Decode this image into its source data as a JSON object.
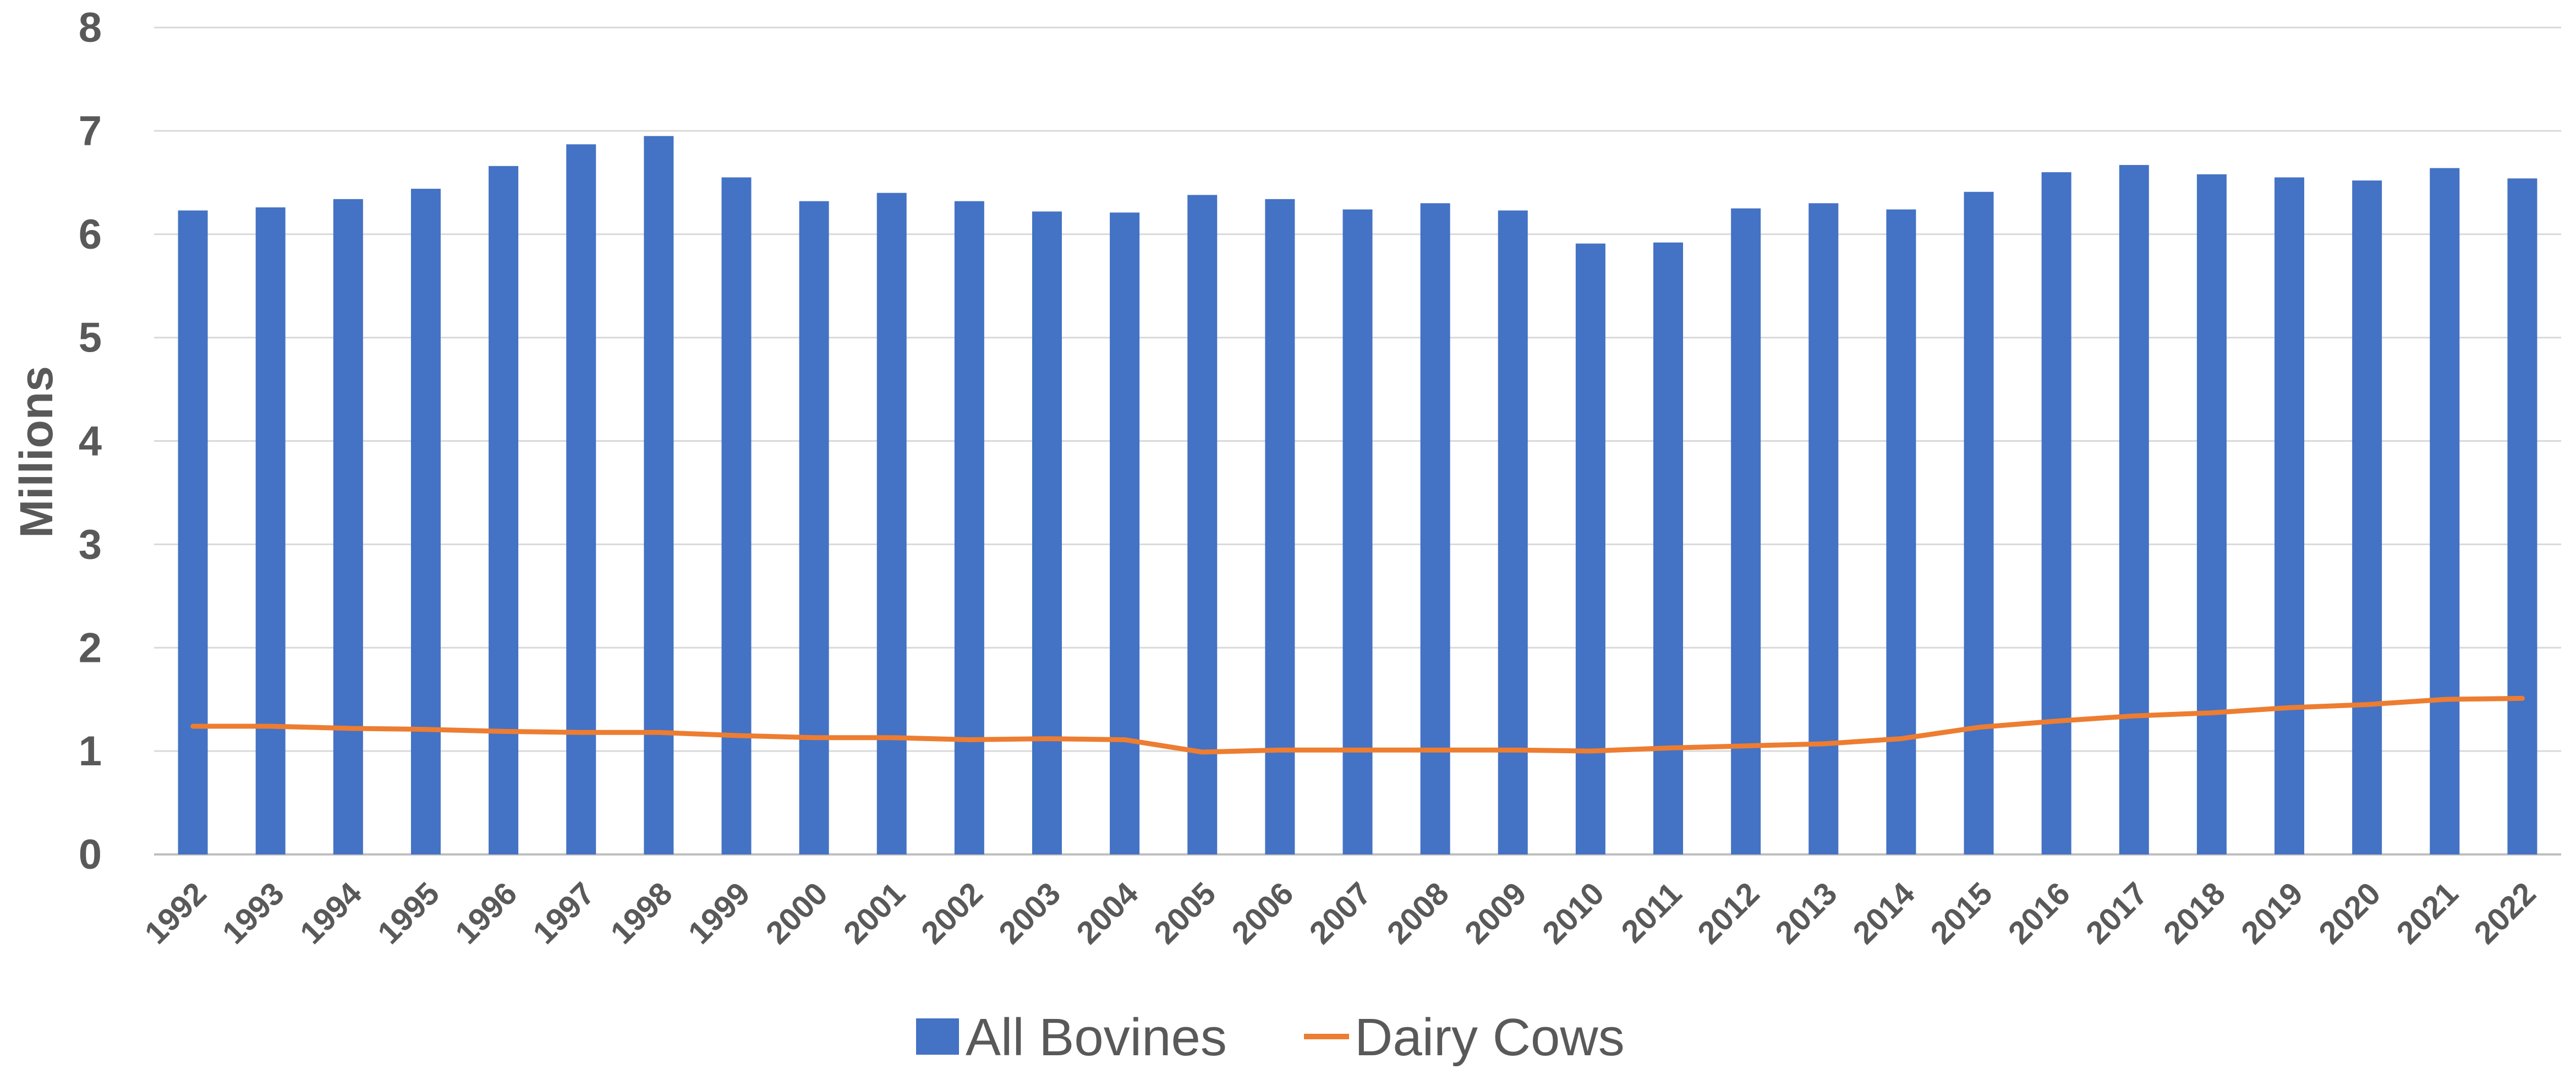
{
  "chart_data": {
    "type": "bar",
    "title": "",
    "xlabel": "",
    "ylabel": "Millions",
    "ylim": [
      0,
      8
    ],
    "yticks": [
      "0",
      "1",
      "2",
      "3",
      "4",
      "5",
      "6",
      "7",
      "8"
    ],
    "grid": true,
    "legend_position": "bottom",
    "categories": [
      "1992",
      "1993",
      "1994",
      "1995",
      "1996",
      "1997",
      "1998",
      "1999",
      "2000",
      "2001",
      "2002",
      "2003",
      "2004",
      "2005",
      "2006",
      "2007",
      "2008",
      "2009",
      "2010",
      "2011",
      "2012",
      "2013",
      "2014",
      "2015",
      "2016",
      "2017",
      "2018",
      "2019",
      "2020",
      "2021",
      "2022"
    ],
    "series": [
      {
        "name": "All Bovines",
        "type": "bar",
        "color": "#4472C4",
        "values": [
          6.23,
          6.26,
          6.34,
          6.44,
          6.66,
          6.87,
          6.95,
          6.55,
          6.32,
          6.4,
          6.32,
          6.22,
          6.21,
          6.38,
          6.34,
          6.24,
          6.3,
          6.23,
          5.91,
          5.92,
          6.25,
          6.3,
          6.24,
          6.41,
          6.6,
          6.67,
          6.58,
          6.55,
          6.52,
          6.64,
          6.54
        ]
      },
      {
        "name": "Dairy Cows",
        "type": "line",
        "color": "#ED7D31",
        "values": [
          1.24,
          1.24,
          1.22,
          1.21,
          1.19,
          1.18,
          1.18,
          1.15,
          1.13,
          1.13,
          1.11,
          1.12,
          1.11,
          0.99,
          1.01,
          1.01,
          1.01,
          1.01,
          1.0,
          1.03,
          1.05,
          1.07,
          1.12,
          1.23,
          1.29,
          1.34,
          1.37,
          1.42,
          1.45,
          1.5,
          1.51
        ]
      }
    ]
  }
}
